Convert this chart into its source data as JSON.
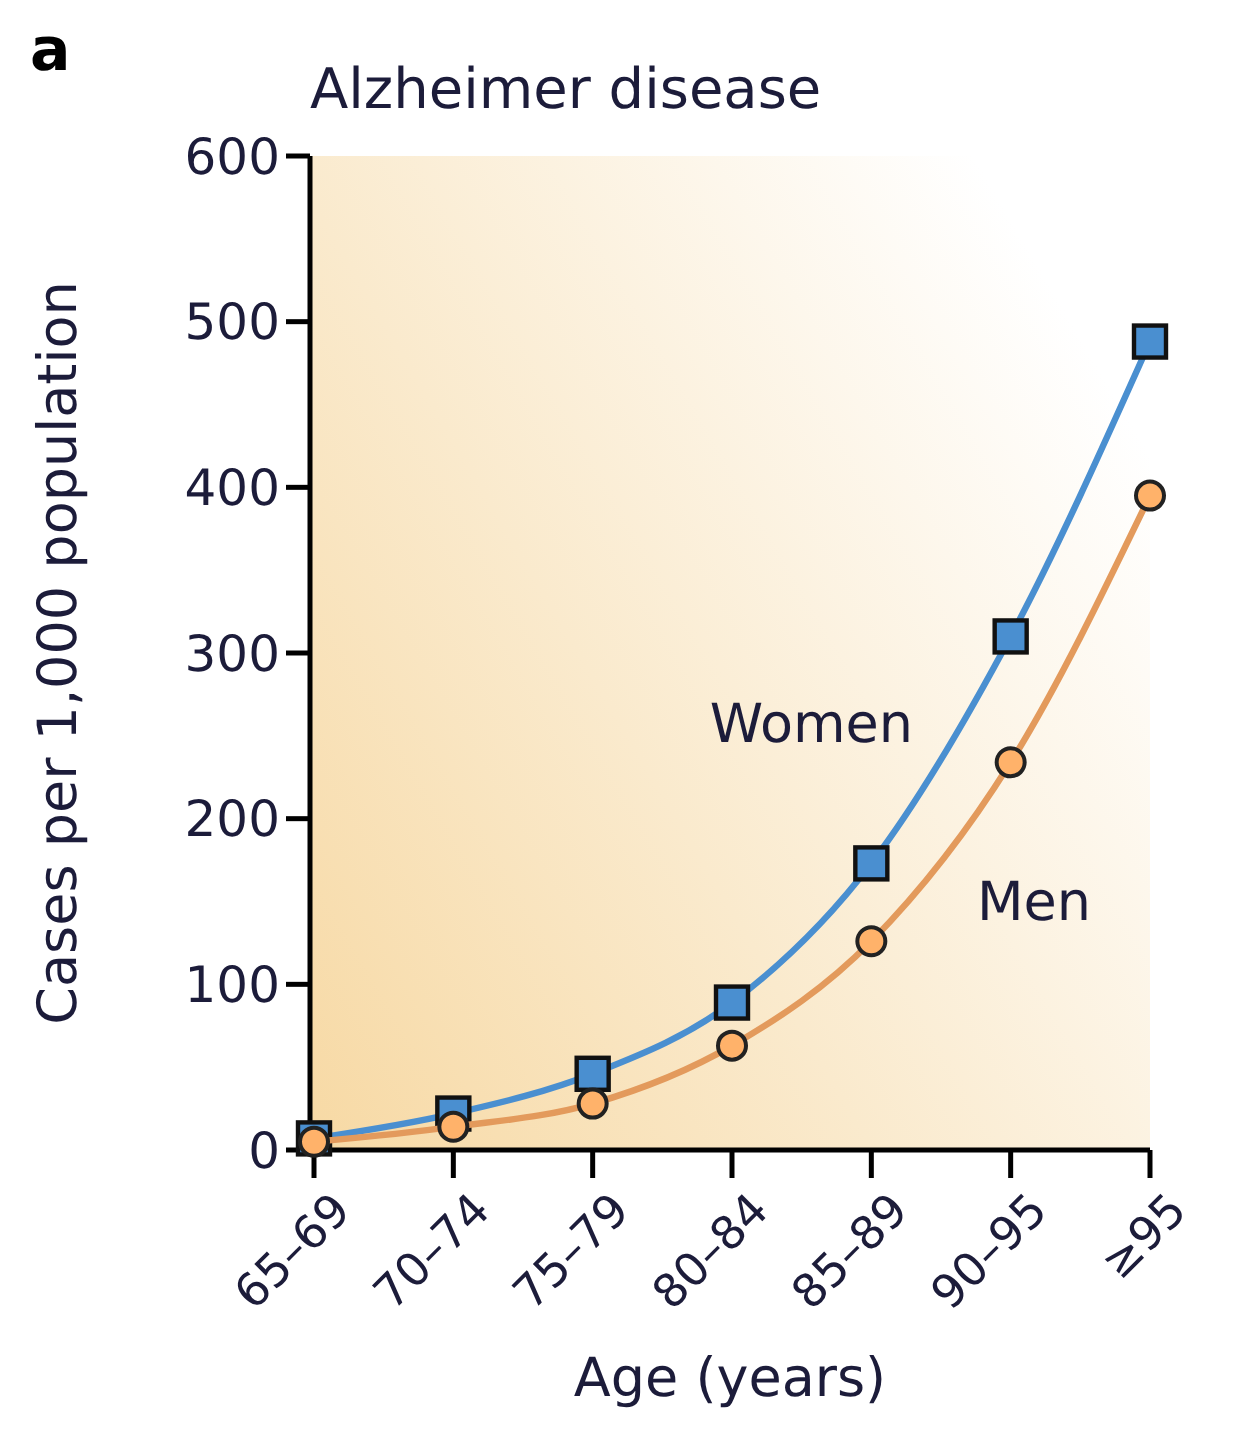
{
  "chart_data": {
    "type": "line",
    "title": "Alzheimer disease",
    "xlabel": "Age (years)",
    "ylabel": "Cases per 1,000 population",
    "annotations": [
      "a"
    ],
    "categories": [
      "65–69",
      "70–74",
      "75–79",
      "80–84",
      "85–89",
      "90–95",
      "≥95"
    ],
    "series": [
      {
        "name": "Women",
        "color": "#4a8fd0",
        "marker": "square",
        "values": [
          7,
          22,
          46,
          89,
          173,
          310,
          488
        ]
      },
      {
        "name": "Men",
        "color": "#e39a5c",
        "marker": "circle",
        "values": [
          5,
          14,
          28,
          63,
          126,
          234,
          395
        ]
      }
    ],
    "ylim": [
      0,
      600
    ],
    "yticks": [
      0,
      100,
      200,
      300,
      400,
      500,
      600
    ]
  }
}
